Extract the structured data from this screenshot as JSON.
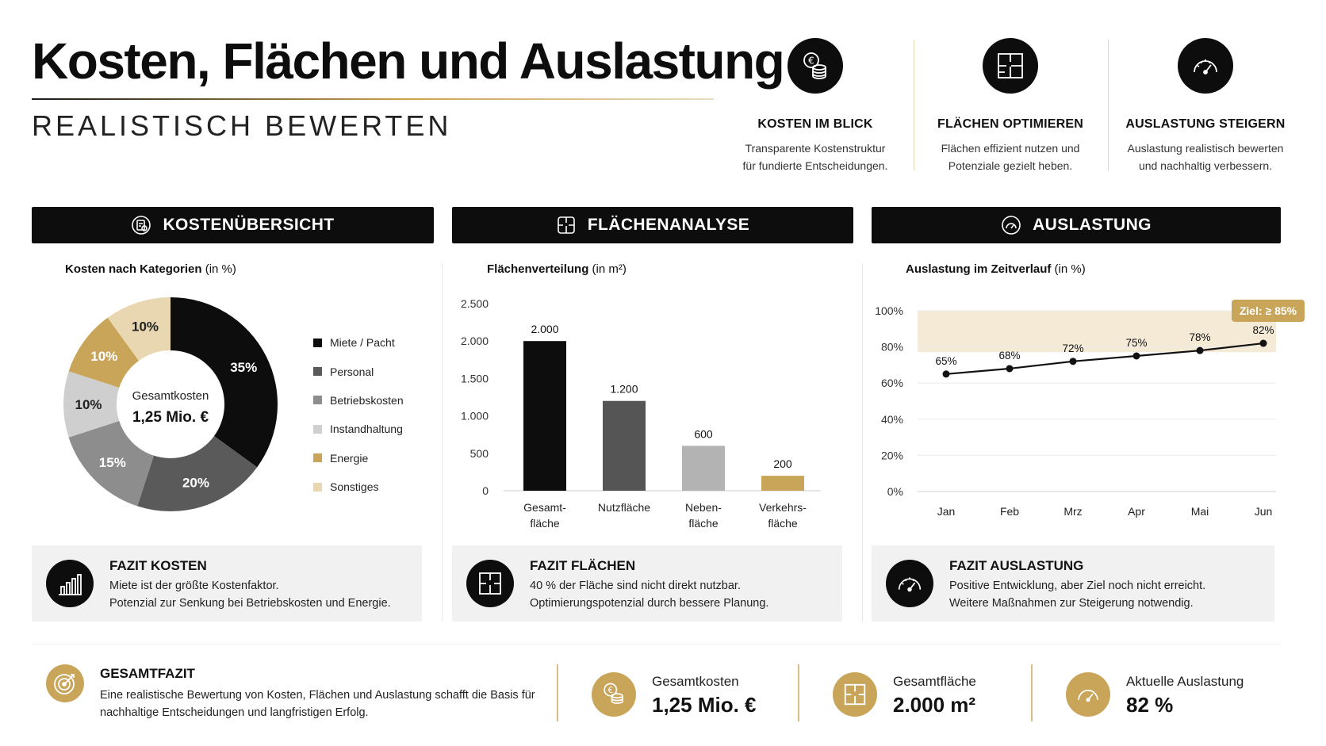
{
  "header": {
    "title": "Kosten, Flächen und Auslastung",
    "subtitle": "REALISTISCH BEWERTEN"
  },
  "features": [
    {
      "icon": "coins-euro-icon",
      "title": "KOSTEN IM BLICK",
      "line1": "Transparente Kostenstruktur",
      "line2": "für fundierte Entscheidungen."
    },
    {
      "icon": "floorplan-icon",
      "title": "FLÄCHEN OPTIMIEREN",
      "line1": "Flächen effizient nutzen und",
      "line2": "Potenziale gezielt heben."
    },
    {
      "icon": "gauge-icon",
      "title": "AUSLASTUNG STEIGERN",
      "line1": "Auslastung realistisch bewerten",
      "line2": "und nachhaltig verbessern."
    }
  ],
  "sections": {
    "kosten": "KOSTENÜBERSICHT",
    "flaechen": "FLÄCHENANALYSE",
    "auslastung": "AUSLASTUNG"
  },
  "colors": {
    "black": "#0d0d0d",
    "gold": "#c9a55a",
    "gold_light": "#e8d7b0",
    "band": "#f4ead6",
    "gray_dark": "#5a5a5a",
    "gray_mid": "#8d8d8d",
    "gray_light": "#c9c9c9"
  },
  "chart_data": [
    {
      "type": "pie",
      "title": "Kosten nach Kategorien",
      "title_unit": "(in %)",
      "center_label": "Gesamtkosten",
      "center_value": "1,25 Mio. €",
      "categories": [
        "Miete / Pacht",
        "Personal",
        "Betriebskosten",
        "Instandhaltung",
        "Energie",
        "Sonstiges"
      ],
      "values": [
        35,
        20,
        15,
        10,
        10,
        10
      ],
      "labels": [
        "35%",
        "20%",
        "15%",
        "10%",
        "10%",
        "10%"
      ],
      "colors": [
        "#0d0d0d",
        "#5a5a5a",
        "#8d8d8d",
        "#cfcfcf",
        "#c9a55a",
        "#e8d7b0"
      ],
      "legend": "right"
    },
    {
      "type": "bar",
      "title": "Flächenverteilung",
      "title_unit": "(in m²)",
      "categories": [
        [
          "Gesamt-",
          "fläche"
        ],
        [
          "Nutzfläche"
        ],
        [
          "Neben-",
          "fläche"
        ],
        [
          "Verkehrs-",
          "fläche"
        ]
      ],
      "values": [
        2000,
        1200,
        600,
        200
      ],
      "value_labels": [
        "2.000",
        "1.200",
        "600",
        "200"
      ],
      "colors": [
        "#0d0d0d",
        "#555555",
        "#b3b3b3",
        "#c9a55a"
      ],
      "ylim": [
        0,
        2500
      ],
      "yticks": [
        0,
        500,
        1000,
        1500,
        2000,
        2500
      ],
      "ytick_labels": [
        "0",
        "500",
        "1.000",
        "1.500",
        "2.000",
        "2.500"
      ],
      "grid": false
    },
    {
      "type": "line",
      "title": "Auslastung im Zeitverlauf",
      "title_unit": "(in %)",
      "categories": [
        "Jan",
        "Feb",
        "Mrz",
        "Apr",
        "Mai",
        "Jun"
      ],
      "values": [
        65,
        68,
        72,
        75,
        78,
        82
      ],
      "value_labels": [
        "65%",
        "68%",
        "72%",
        "75%",
        "78%",
        "82%"
      ],
      "ylim": [
        0,
        100
      ],
      "yticks": [
        0,
        20,
        40,
        60,
        80,
        100
      ],
      "ytick_labels": [
        "0%",
        "20%",
        "40%",
        "60%",
        "80%",
        "100%"
      ],
      "target": 85,
      "target_label": "Ziel: ≥ 85%",
      "grid": true
    }
  ],
  "fazits": [
    {
      "icon": "bar-chart-icon",
      "title": "FAZIT KOSTEN",
      "line1": "Miete ist der größte Kostenfaktor.",
      "line2": "Potenzial zur Senkung bei Betriebskosten und Energie."
    },
    {
      "icon": "floorplan-icon",
      "title": "FAZIT FLÄCHEN",
      "line1": "40 % der Fläche sind nicht direkt nutzbar.",
      "line2": "Optimierungspotenzial durch bessere Planung."
    },
    {
      "icon": "gauge-icon",
      "title": "FAZIT AUSLASTUNG",
      "line1": "Positive Entwicklung, aber Ziel noch nicht erreicht.",
      "line2": "Weitere Maßnahmen zur Steigerung notwendig."
    }
  ],
  "gesamtfazit": {
    "icon": "target-icon",
    "title": "GESAMTFAZIT",
    "line1": "Eine realistische Bewertung von Kosten, Flächen und Auslastung schafft die Basis für",
    "line2": "nachhaltige Entscheidungen und langfristigen Erfolg."
  },
  "kpis": [
    {
      "icon": "coins-euro-icon",
      "label": "Gesamtkosten",
      "value": "1,25 Mio. €"
    },
    {
      "icon": "floorplan-icon",
      "label": "Gesamtfläche",
      "value": "2.000 m²"
    },
    {
      "icon": "gauge-icon",
      "label": "Aktuelle Auslastung",
      "value": "82 %"
    }
  ]
}
